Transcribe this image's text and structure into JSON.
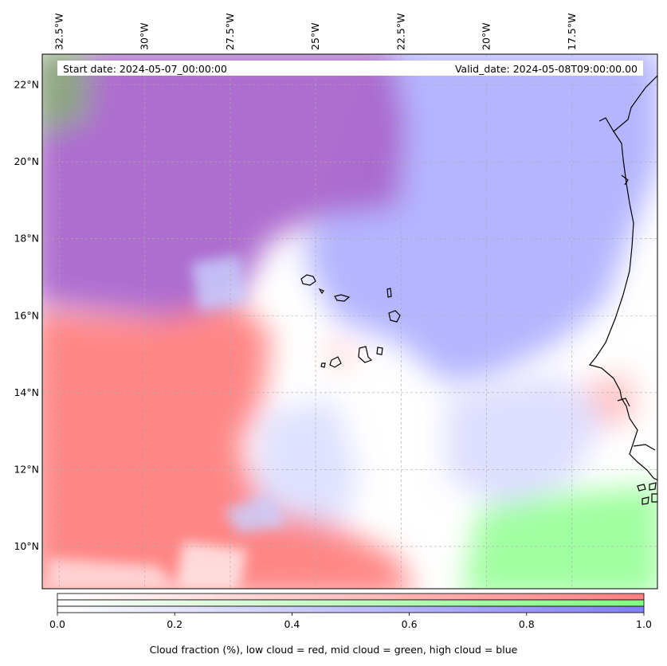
{
  "map": {
    "lon_range": [
      -33.0,
      -15.0
    ],
    "lat_range": [
      8.9,
      22.8
    ],
    "lon_ticks": [
      {
        "value": -32.5,
        "label": "32.5°W"
      },
      {
        "value": -30.0,
        "label": "30°W"
      },
      {
        "value": -27.5,
        "label": "27.5°W"
      },
      {
        "value": -25.0,
        "label": "25°W"
      },
      {
        "value": -22.5,
        "label": "22.5°W"
      },
      {
        "value": -20.0,
        "label": "20°W"
      },
      {
        "value": -17.5,
        "label": "17.5°W"
      }
    ],
    "lat_ticks": [
      {
        "value": 22,
        "label": "22°N"
      },
      {
        "value": 20,
        "label": "20°N"
      },
      {
        "value": 18,
        "label": "18°N"
      },
      {
        "value": 16,
        "label": "16°N"
      },
      {
        "value": 14,
        "label": "14°N"
      },
      {
        "value": 12,
        "label": "12°N"
      },
      {
        "value": 10,
        "label": "10°N"
      }
    ],
    "gridlines": true,
    "start_date": "Start date: 2024-05-07_00:00:00",
    "valid_date": "Valid_date: 2024-05-08T09:00:00.00",
    "colors": {
      "low_cloud": "#ff7f7f",
      "mid_cloud": "#7fff7f",
      "high_cloud": "#7f7fff",
      "overlap_low_high": "#b070c0",
      "coastline": "#000000"
    }
  },
  "colorbar": {
    "min": 0.0,
    "max": 1.0,
    "ticks": [
      {
        "value": 0.0,
        "label": "0.0"
      },
      {
        "value": 0.2,
        "label": "0.2"
      },
      {
        "value": 0.4,
        "label": "0.4"
      },
      {
        "value": 0.6,
        "label": "0.6"
      },
      {
        "value": 0.8,
        "label": "0.8"
      },
      {
        "value": 1.0,
        "label": "1.0"
      }
    ],
    "bars": [
      {
        "name": "low",
        "color": "#ff7f7f"
      },
      {
        "name": "mid",
        "color": "#7fff7f"
      },
      {
        "name": "high",
        "color": "#7f7fff"
      }
    ],
    "caption": "Cloud fraction (%), low cloud = red, mid cloud = green, high cloud = blue"
  }
}
